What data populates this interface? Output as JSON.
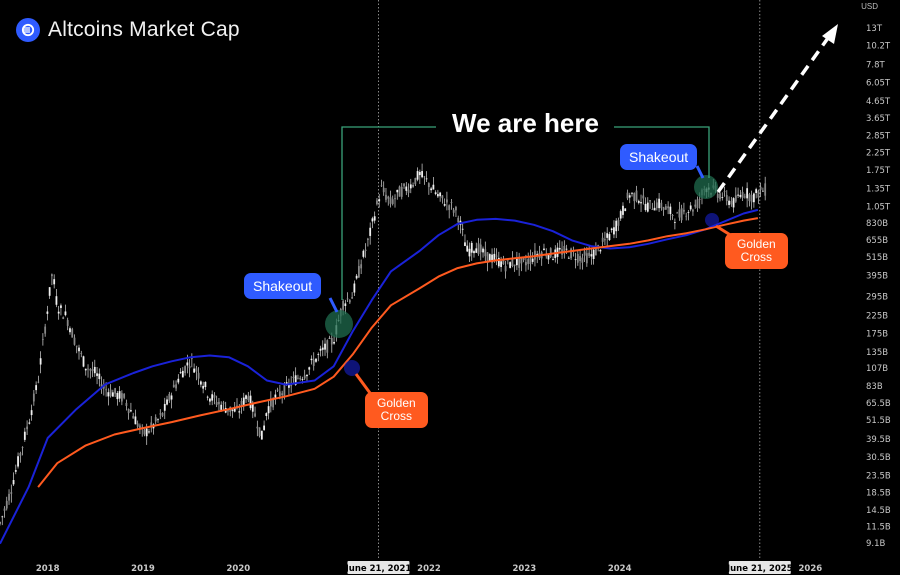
{
  "header": {
    "title": "Altcoins Market Cap",
    "logo_icon": "altcoin-logo-icon",
    "accent": "#2f5bff"
  },
  "currency": "USD",
  "annotations": {
    "headline": "We are here",
    "shakeout_1": "Shakeout",
    "shakeout_2": "Shakeout",
    "golden_cross_1": "Golden\nCross",
    "golden_cross_2": "Golden\nCross",
    "date_1": "June 21, 2021",
    "date_2": "June 21, 2025",
    "arrow_icon": "dashed-arrow-up-icon"
  },
  "colors": {
    "ma_fast": "#1a22d8",
    "ma_slow": "#ff5a1f",
    "candles": "#d8d8d8",
    "highlight": "#1f6b4e",
    "bubble_blue": "#2f5bff",
    "bubble_orange": "#ff5a1f"
  },
  "chart_data": {
    "type": "line",
    "title": "Altcoins Market Cap",
    "y_scale": "log",
    "y_unit": "USD",
    "ylim": [
      8000000000.0,
      15000000000000.0
    ],
    "y_ticks": [
      "13T",
      "10.2T",
      "7.8T",
      "6.05T",
      "4.65T",
      "3.65T",
      "2.85T",
      "2.25T",
      "1.75T",
      "1.35T",
      "1.05T",
      "830B",
      "655B",
      "515B",
      "395B",
      "295B",
      "225B",
      "175B",
      "135B",
      "107B",
      "83B",
      "65.5B",
      "51.5B",
      "39.5B",
      "30.5B",
      "23.5B",
      "18.5B",
      "14.5B",
      "11.5B",
      "9.1B"
    ],
    "x_ticks": [
      "2018",
      "2019",
      "2020",
      "2022",
      "2023",
      "2024",
      "2026"
    ],
    "x_range": [
      2017.5,
      2026.5
    ],
    "x_highlight": [
      "June 21, 2021",
      "June 21, 2025"
    ],
    "grid": false,
    "series": [
      {
        "kind": "price",
        "x": [
          2017.5,
          2017.6,
          2017.7,
          2017.8,
          2017.9,
          2018.0,
          2018.05,
          2018.1,
          2018.2,
          2018.3,
          2018.4,
          2018.5,
          2018.6,
          2018.7,
          2018.8,
          2018.9,
          2019.0,
          2019.1,
          2019.2,
          2019.3,
          2019.4,
          2019.5,
          2019.6,
          2019.7,
          2019.8,
          2019.9,
          2020.0,
          2020.1,
          2020.2,
          2020.25,
          2020.3,
          2020.4,
          2020.5,
          2020.6,
          2020.7,
          2020.8,
          2020.9,
          2021.0,
          2021.1,
          2021.2,
          2021.3,
          2021.35,
          2021.45,
          2021.5,
          2021.6,
          2021.7,
          2021.8,
          2021.9,
          2022.0,
          2022.1,
          2022.2,
          2022.3,
          2022.4,
          2022.5,
          2022.6,
          2022.7,
          2022.8,
          2022.9,
          2023.0,
          2023.1,
          2023.2,
          2023.3,
          2023.4,
          2023.5,
          2023.6,
          2023.7,
          2023.8,
          2023.9,
          2024.0,
          2024.1,
          2024.2,
          2024.3,
          2024.4,
          2024.5,
          2024.6,
          2024.7,
          2024.8,
          2024.9,
          2025.0,
          2025.1,
          2025.2,
          2025.3,
          2025.4,
          2025.47,
          2025.55
        ],
        "y": [
          12000000000.0,
          18000000000.0,
          30000000000.0,
          50000000000.0,
          90000000000.0,
          250000000000.0,
          420000000000.0,
          260000000000.0,
          220000000000.0,
          150000000000.0,
          110000000000.0,
          100000000000.0,
          80000000000.0,
          75000000000.0,
          70000000000.0,
          55000000000.0,
          42000000000.0,
          47000000000.0,
          55000000000.0,
          75000000000.0,
          100000000000.0,
          120000000000.0,
          95000000000.0,
          72000000000.0,
          65000000000.0,
          60000000000.0,
          58000000000.0,
          75000000000.0,
          50000000000.0,
          40000000000.0,
          60000000000.0,
          72000000000.0,
          80000000000.0,
          92000000000.0,
          100000000000.0,
          120000000000.0,
          140000000000.0,
          160000000000.0,
          270000000000.0,
          300000000000.0,
          500000000000.0,
          600000000000.0,
          1050000000000.0,
          1350000000000.0,
          1100000000000.0,
          1300000000000.0,
          1400000000000.0,
          1650000000000.0,
          1450000000000.0,
          1200000000000.0,
          1100000000000.0,
          950000000000.0,
          560000000000.0,
          600000000000.0,
          520000000000.0,
          500000000000.0,
          460000000000.0,
          480000000000.0,
          470000000000.0,
          520000000000.0,
          560000000000.0,
          530000000000.0,
          560000000000.0,
          540000000000.0,
          510000000000.0,
          520000000000.0,
          600000000000.0,
          700000000000.0,
          880000000000.0,
          1250000000000.0,
          1200000000000.0,
          1050000000000.0,
          1100000000000.0,
          1000000000000.0,
          900000000000.0,
          1000000000000.0,
          1050000000000.0,
          1400000000000.0,
          1300000000000.0,
          1200000000000.0,
          1100000000000.0,
          1300000000000.0,
          1200000000000.0,
          1300000000000.0,
          1350000000000.0
        ]
      },
      {
        "kind": "ma_fast",
        "x": [
          2017.5,
          2017.8,
          2018.0,
          2018.3,
          2018.6,
          2018.9,
          2019.1,
          2019.3,
          2019.5,
          2019.7,
          2019.9,
          2020.1,
          2020.3,
          2020.5,
          2020.8,
          2021.0,
          2021.2,
          2021.4,
          2021.6,
          2021.9,
          2022.1,
          2022.3,
          2022.5,
          2022.7,
          2022.9,
          2023.1,
          2023.3,
          2023.5,
          2023.7,
          2023.9,
          2024.1,
          2024.3,
          2024.5,
          2024.7,
          2024.9,
          2025.1,
          2025.3,
          2025.45
        ],
        "y": [
          9000000000.0,
          20000000000.0,
          40000000000.0,
          60000000000.0,
          85000000000.0,
          100000000000.0,
          110000000000.0,
          118000000000.0,
          125000000000.0,
          128000000000.0,
          125000000000.0,
          110000000000.0,
          90000000000.0,
          85000000000.0,
          90000000000.0,
          110000000000.0,
          180000000000.0,
          280000000000.0,
          420000000000.0,
          560000000000.0,
          700000000000.0,
          820000000000.0,
          870000000000.0,
          880000000000.0,
          860000000000.0,
          810000000000.0,
          740000000000.0,
          650000000000.0,
          600000000000.0,
          580000000000.0,
          590000000000.0,
          620000000000.0,
          660000000000.0,
          700000000000.0,
          760000000000.0,
          850000000000.0,
          950000000000.0,
          1000000000000.0
        ]
      },
      {
        "kind": "ma_slow",
        "x": [
          2017.9,
          2018.1,
          2018.4,
          2018.7,
          2019.0,
          2019.3,
          2019.6,
          2019.9,
          2020.2,
          2020.5,
          2020.8,
          2021.0,
          2021.2,
          2021.4,
          2021.6,
          2021.9,
          2022.1,
          2022.3,
          2022.5,
          2022.7,
          2022.9,
          2023.1,
          2023.3,
          2023.5,
          2023.7,
          2023.9,
          2024.1,
          2024.3,
          2024.5,
          2024.7,
          2024.9,
          2025.1,
          2025.3,
          2025.45
        ],
        "y": [
          20000000000.0,
          28000000000.0,
          36000000000.0,
          42000000000.0,
          46000000000.0,
          50000000000.0,
          55000000000.0,
          60000000000.0,
          66000000000.0,
          72000000000.0,
          80000000000.0,
          95000000000.0,
          130000000000.0,
          190000000000.0,
          260000000000.0,
          330000000000.0,
          390000000000.0,
          440000000000.0,
          470000000000.0,
          490000000000.0,
          505000000000.0,
          520000000000.0,
          540000000000.0,
          560000000000.0,
          580000000000.0,
          600000000000.0,
          620000000000.0,
          650000000000.0,
          690000000000.0,
          720000000000.0,
          760000000000.0,
          810000000000.0,
          860000000000.0,
          890000000000.0
        ]
      }
    ]
  }
}
